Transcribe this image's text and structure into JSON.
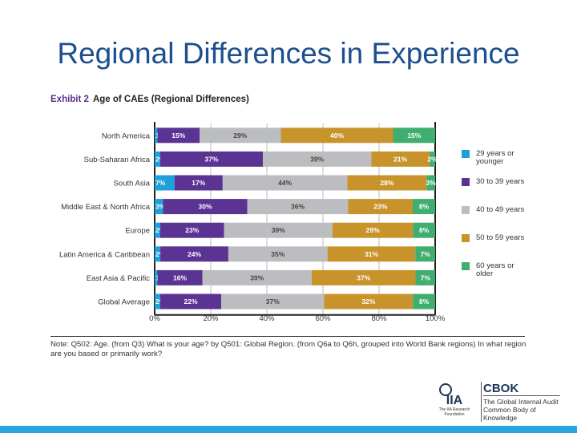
{
  "title": "Regional Differences in Experience",
  "exhibit": {
    "number": "Exhibit 2",
    "caption": "Age of CAEs (Regional Differences)"
  },
  "note": "Note: Q502: Age. (from Q3) What is your age? by Q501: Global Region. (from Q6a to Q6h, grouped into World Bank regions) In what region are you based or primarily work?",
  "logo": {
    "org": "The IIA Research Foundation",
    "brand": "CBOK",
    "tagline": "The Global Internal Audit Common Body of Knowledge"
  },
  "chart_data": {
    "type": "bar",
    "orientation": "horizontal",
    "stacked": true,
    "categories": [
      "North America",
      "Sub-Saharan Africa",
      "South Asia",
      "Middle East & North Africa",
      "Europe",
      "Latin America & Caribbean",
      "East Asia & Pacific",
      "Global Average"
    ],
    "series": [
      {
        "name": "29 years or younger",
        "color": "#1ea0d8",
        "values": [
          1,
          2,
          7,
          3,
          2,
          2,
          1,
          2
        ]
      },
      {
        "name": "30 to 39 years",
        "color": "#5b3393",
        "values": [
          15,
          37,
          17,
          30,
          23,
          24,
          16,
          22
        ]
      },
      {
        "name": "40 to 49 years",
        "color": "#bcbdc0",
        "values": [
          29,
          39,
          44,
          36,
          39,
          35,
          39,
          37
        ]
      },
      {
        "name": "50 to 59 years",
        "color": "#c9932c",
        "values": [
          40,
          21,
          28,
          23,
          29,
          31,
          37,
          32
        ]
      },
      {
        "name": "60 years or older",
        "color": "#3fae6f",
        "values": [
          15,
          2,
          3,
          8,
          8,
          7,
          7,
          8
        ]
      }
    ],
    "xticks": [
      "0%",
      "20%",
      "40%",
      "60%",
      "80%",
      "100%"
    ],
    "xlim": [
      0,
      100
    ],
    "grid": true,
    "legend": "right"
  }
}
